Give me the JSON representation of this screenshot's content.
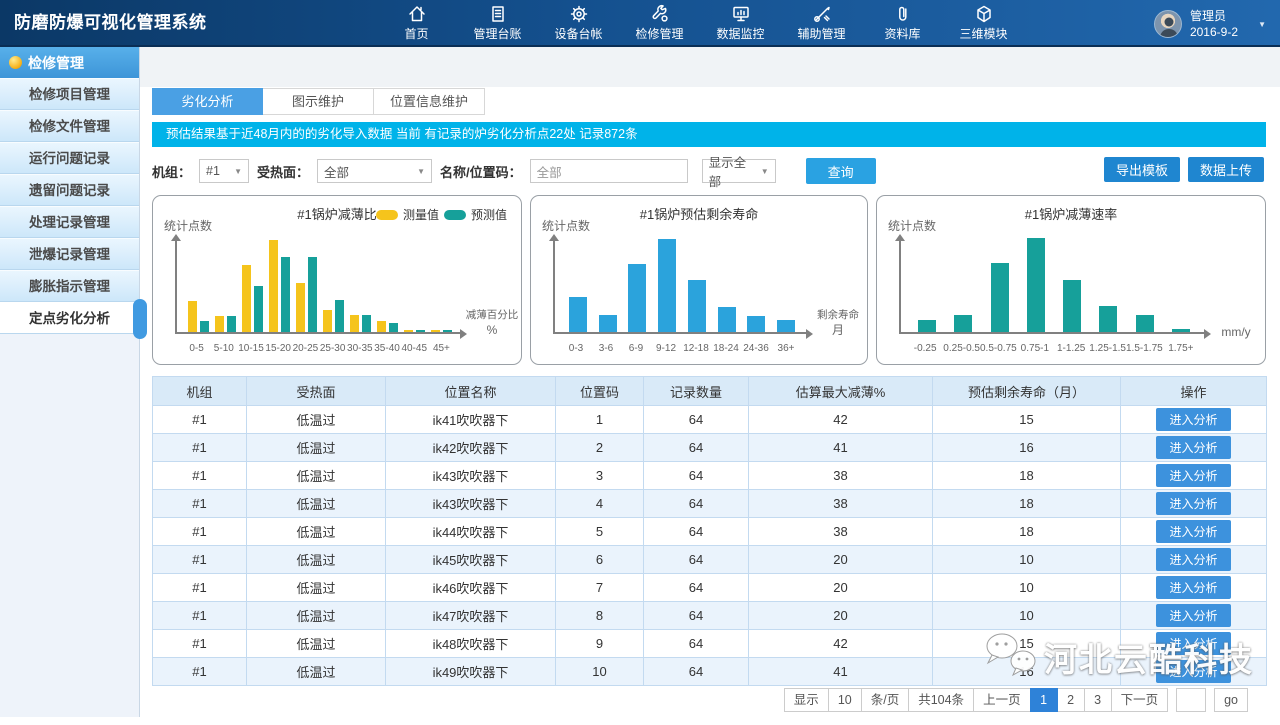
{
  "app": {
    "title": "防磨防爆可视化管理系统"
  },
  "user": {
    "name": "管理员",
    "date": "2016-9-2"
  },
  "nav": {
    "items": [
      {
        "id": "home",
        "label": "首页",
        "icon": "home-icon"
      },
      {
        "id": "ledger",
        "label": "管理台账",
        "icon": "ledger-icon"
      },
      {
        "id": "device",
        "label": "设备台帐",
        "icon": "gear-icon"
      },
      {
        "id": "repair",
        "label": "检修管理",
        "icon": "wrench-icon"
      },
      {
        "id": "monitor",
        "label": "数据监控",
        "icon": "monitor-chart-icon"
      },
      {
        "id": "assist",
        "label": "辅助管理",
        "icon": "tools-icon"
      },
      {
        "id": "library",
        "label": "资料库",
        "icon": "paperclip-icon"
      },
      {
        "id": "threed",
        "label": "三维模块",
        "icon": "cube-icon"
      }
    ]
  },
  "sidebar": {
    "header": "检修管理",
    "header_icon": "yellow-ball-icon",
    "items": [
      "检修项目管理",
      "检修文件管理",
      "运行问题记录",
      "遗留问题记录",
      "处理记录管理",
      "泄爆记录管理",
      "膨胀指示管理",
      "定点劣化分析"
    ],
    "active_index": 7
  },
  "tabs": [
    {
      "label": "劣化分析",
      "active": true
    },
    {
      "label": "图示维护",
      "active": false
    },
    {
      "label": "位置信息维护",
      "active": false
    }
  ],
  "notice": "预估结果基于近48月内的的劣化导入数据    当前 有记录的炉劣化分析点22处  记录872条",
  "filters": {
    "unit_label": "机组：",
    "unit_value": "#1",
    "surface_label": "受热面：",
    "surface_value": "全部",
    "name_label": "名称/位置码：",
    "name_value": "全部",
    "display_value": "显示全部",
    "search_label": "查询"
  },
  "actions": {
    "export_label": "导出模板",
    "upload_label": "数据上传"
  },
  "chart_data": [
    {
      "type": "bar",
      "title": "#1锅炉减薄比",
      "ylabel": "统计点数",
      "xlabel_lines": [
        "减薄百分比",
        "%"
      ],
      "categories": [
        "0-5",
        "5-10",
        "10-15",
        "15-20",
        "20-25",
        "25-30",
        "30-35",
        "35-40",
        "40-45",
        "45+"
      ],
      "series": [
        {
          "name": "测量值",
          "color": "#f5c41c",
          "values": [
            31,
            16,
            67,
            92,
            49,
            22,
            17,
            11,
            1,
            1
          ]
        },
        {
          "name": "预测值",
          "color": "#16a09a",
          "values": [
            11,
            16,
            46,
            75,
            75,
            32,
            17,
            9,
            1,
            1
          ]
        }
      ],
      "ylim": [
        0,
        100
      ],
      "grid": false,
      "legend_position": "top-right",
      "value_note": "axis unlabeled; values are relative bar heights (统计点数)"
    },
    {
      "type": "bar",
      "title": "#1锅炉预估剩余寿命",
      "ylabel": "统计点数",
      "xlabel_lines": [
        "剩余寿命",
        "月"
      ],
      "categories": [
        "0-3",
        "3-6",
        "6-9",
        "9-12",
        "12-18",
        "18-24",
        "24-36",
        "36+"
      ],
      "series": [
        {
          "name": "统计点数",
          "color": "#2ba3dc",
          "values": [
            35,
            17,
            68,
            93,
            52,
            25,
            16,
            12
          ]
        }
      ],
      "ylim": [
        0,
        100
      ],
      "grid": false,
      "value_note": "axis unlabeled; values are relative bar heights (统计点数)"
    },
    {
      "type": "bar",
      "title": "#1锅炉减薄速率",
      "ylabel": "统计点数",
      "xlabel_lines": [
        "mm/y"
      ],
      "categories": [
        "-0.25",
        "0.25-0.5",
        "0.5-0.75",
        "0.75-1",
        "1-1.25",
        "1.25-1.5",
        "1.5-1.75",
        "1.75+"
      ],
      "series": [
        {
          "name": "统计点数",
          "color": "#16a09a",
          "values": [
            12,
            17,
            69,
            94,
            52,
            26,
            17,
            3
          ]
        }
      ],
      "ylim": [
        0,
        100
      ],
      "grid": false,
      "value_note": "axis unlabeled; values are relative bar heights (统计点数)"
    }
  ],
  "table": {
    "headers": [
      "机组",
      "受热面",
      "位置名称",
      "位置码",
      "记录数量",
      "估算最大减薄%",
      "预估剩余寿命（月）",
      "操作"
    ],
    "action_label": "进入分析",
    "highlight_color": "#ff6a2b",
    "rows": [
      {
        "unit": "#1",
        "surface": "低温过",
        "name": "ik41吹吹器下",
        "code": "1",
        "count": "64",
        "max_thin": "42",
        "life": "15"
      },
      {
        "unit": "#1",
        "surface": "低温过",
        "name": "ik42吹吹器下",
        "code": "2",
        "count": "64",
        "max_thin": "41",
        "life": "16"
      },
      {
        "unit": "#1",
        "surface": "低温过",
        "name": "ik43吹吹器下",
        "code": "3",
        "count": "64",
        "max_thin": "38",
        "life": "18"
      },
      {
        "unit": "#1",
        "surface": "低温过",
        "name": "ik43吹吹器下",
        "code": "4",
        "count": "64",
        "max_thin": "38",
        "life": "18"
      },
      {
        "unit": "#1",
        "surface": "低温过",
        "name": "ik44吹吹器下",
        "code": "5",
        "count": "64",
        "max_thin": "38",
        "life": "18"
      },
      {
        "unit": "#1",
        "surface": "低温过",
        "name": "ik45吹吹器下",
        "code": "6",
        "count": "64",
        "max_thin": "20",
        "life": "10"
      },
      {
        "unit": "#1",
        "surface": "低温过",
        "name": "ik46吹吹器下",
        "code": "7",
        "count": "64",
        "max_thin": "20",
        "life": "10"
      },
      {
        "unit": "#1",
        "surface": "低温过",
        "name": "ik47吹吹器下",
        "code": "8",
        "count": "64",
        "max_thin": "20",
        "life": "10"
      },
      {
        "unit": "#1",
        "surface": "低温过",
        "name": "ik48吹吹器下",
        "code": "9",
        "count": "64",
        "max_thin": "42",
        "life": "15"
      },
      {
        "unit": "#1",
        "surface": "低温过",
        "name": "ik49吹吹器下",
        "code": "10",
        "count": "64",
        "max_thin": "41",
        "life": "16"
      }
    ]
  },
  "pagination": {
    "show_label": "显示",
    "page_size": "10",
    "per_label": "条/页",
    "total_label": "共104条",
    "prev_label": "上一页",
    "pages": [
      "1",
      "2",
      "3"
    ],
    "active_page": "1",
    "next_label": "下一页",
    "goto_value": "",
    "go_label": "go"
  },
  "watermark": {
    "text": "河北云酷科技",
    "icon": "chat-bubbles-icon"
  }
}
